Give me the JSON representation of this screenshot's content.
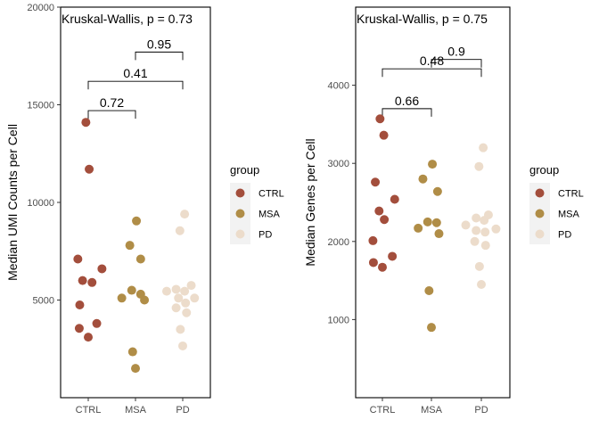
{
  "colors": {
    "CTRL": "#a34e3c",
    "MSA": "#b08d47",
    "PD": "#ecdccb",
    "axis": "#333333",
    "tick_text": "#4d4d4d",
    "legend_key_bg": "#f2f2f2"
  },
  "legend": {
    "title": "group",
    "entries": [
      "CTRL",
      "MSA",
      "PD"
    ]
  },
  "chart_data": [
    {
      "type": "scatter",
      "annotation": "Kruskal-Wallis, p = 0.73",
      "xlabel": "",
      "ylabel": "Median UMI Counts per Cell",
      "categories": [
        "CTRL",
        "MSA",
        "PD"
      ],
      "ylim": [
        0,
        20000
      ],
      "yticks": [
        5000,
        10000,
        15000,
        20000
      ],
      "ytick_labels": [
        "5000",
        "10000",
        "15000",
        "20000"
      ],
      "points": [
        {
          "group": "CTRL",
          "xj": -0.05,
          "y": 14100
        },
        {
          "group": "CTRL",
          "xj": 0.02,
          "y": 11700
        },
        {
          "group": "CTRL",
          "xj": -0.22,
          "y": 7100
        },
        {
          "group": "CTRL",
          "xj": 0.29,
          "y": 6600
        },
        {
          "group": "CTRL",
          "xj": -0.12,
          "y": 6000
        },
        {
          "group": "CTRL",
          "xj": 0.08,
          "y": 5900
        },
        {
          "group": "CTRL",
          "xj": -0.18,
          "y": 4750
        },
        {
          "group": "CTRL",
          "xj": 0.18,
          "y": 3800
        },
        {
          "group": "CTRL",
          "xj": -0.19,
          "y": 3550
        },
        {
          "group": "CTRL",
          "xj": 0.0,
          "y": 3100
        },
        {
          "group": "MSA",
          "xj": 0.02,
          "y": 9050
        },
        {
          "group": "MSA",
          "xj": -0.12,
          "y": 7800
        },
        {
          "group": "MSA",
          "xj": 0.11,
          "y": 7100
        },
        {
          "group": "MSA",
          "xj": -0.08,
          "y": 5500
        },
        {
          "group": "MSA",
          "xj": 0.11,
          "y": 5300
        },
        {
          "group": "MSA",
          "xj": -0.29,
          "y": 5100
        },
        {
          "group": "MSA",
          "xj": 0.19,
          "y": 5000
        },
        {
          "group": "MSA",
          "xj": -0.06,
          "y": 2350
        },
        {
          "group": "MSA",
          "xj": 0.0,
          "y": 1500
        },
        {
          "group": "PD",
          "xj": 0.04,
          "y": 9400
        },
        {
          "group": "PD",
          "xj": -0.06,
          "y": 8550
        },
        {
          "group": "PD",
          "xj": 0.18,
          "y": 5750
        },
        {
          "group": "PD",
          "xj": -0.14,
          "y": 5550
        },
        {
          "group": "PD",
          "xj": 0.04,
          "y": 5450
        },
        {
          "group": "PD",
          "xj": -0.34,
          "y": 5450
        },
        {
          "group": "PD",
          "xj": 0.25,
          "y": 5100
        },
        {
          "group": "PD",
          "xj": -0.09,
          "y": 5100
        },
        {
          "group": "PD",
          "xj": 0.06,
          "y": 4850
        },
        {
          "group": "PD",
          "xj": -0.14,
          "y": 4600
        },
        {
          "group": "PD",
          "xj": 0.08,
          "y": 4350
        },
        {
          "group": "PD",
          "xj": -0.05,
          "y": 3500
        },
        {
          "group": "PD",
          "xj": 0.0,
          "y": 2650
        }
      ],
      "comparisons": [
        {
          "from": "CTRL",
          "to": "MSA",
          "y": 14700,
          "label": "0.72"
        },
        {
          "from": "CTRL",
          "to": "PD",
          "y": 16200,
          "label": "0.41"
        },
        {
          "from": "MSA",
          "to": "PD",
          "y": 17700,
          "label": "0.95"
        }
      ]
    },
    {
      "type": "scatter",
      "annotation": "Kruskal-Wallis, p = 0.75",
      "xlabel": "",
      "ylabel": "Median Genes per Cell",
      "categories": [
        "CTRL",
        "MSA",
        "PD"
      ],
      "ylim": [
        0,
        5000
      ],
      "yticks": [
        1000,
        2000,
        3000,
        4000
      ],
      "ytick_labels": [
        "1000",
        "2000",
        "3000",
        "4000"
      ],
      "points": [
        {
          "group": "CTRL",
          "xj": -0.05,
          "y": 3570
        },
        {
          "group": "CTRL",
          "xj": 0.03,
          "y": 3360
        },
        {
          "group": "CTRL",
          "xj": -0.15,
          "y": 2760
        },
        {
          "group": "CTRL",
          "xj": 0.26,
          "y": 2540
        },
        {
          "group": "CTRL",
          "xj": -0.07,
          "y": 2390
        },
        {
          "group": "CTRL",
          "xj": 0.04,
          "y": 2280
        },
        {
          "group": "CTRL",
          "xj": -0.2,
          "y": 2010
        },
        {
          "group": "CTRL",
          "xj": 0.21,
          "y": 1810
        },
        {
          "group": "CTRL",
          "xj": -0.19,
          "y": 1730
        },
        {
          "group": "CTRL",
          "xj": 0.0,
          "y": 1670
        },
        {
          "group": "MSA",
          "xj": 0.02,
          "y": 2990
        },
        {
          "group": "MSA",
          "xj": -0.18,
          "y": 2800
        },
        {
          "group": "MSA",
          "xj": 0.13,
          "y": 2640
        },
        {
          "group": "MSA",
          "xj": -0.08,
          "y": 2250
        },
        {
          "group": "MSA",
          "xj": 0.11,
          "y": 2240
        },
        {
          "group": "MSA",
          "xj": -0.28,
          "y": 2170
        },
        {
          "group": "MSA",
          "xj": 0.16,
          "y": 2100
        },
        {
          "group": "MSA",
          "xj": -0.05,
          "y": 1370
        },
        {
          "group": "MSA",
          "xj": 0.0,
          "y": 900
        },
        {
          "group": "PD",
          "xj": 0.04,
          "y": 3200
        },
        {
          "group": "PD",
          "xj": -0.05,
          "y": 2960
        },
        {
          "group": "PD",
          "xj": 0.15,
          "y": 2340
        },
        {
          "group": "PD",
          "xj": -0.11,
          "y": 2300
        },
        {
          "group": "PD",
          "xj": 0.06,
          "y": 2270
        },
        {
          "group": "PD",
          "xj": -0.33,
          "y": 2210
        },
        {
          "group": "PD",
          "xj": 0.31,
          "y": 2160
        },
        {
          "group": "PD",
          "xj": -0.11,
          "y": 2140
        },
        {
          "group": "PD",
          "xj": 0.08,
          "y": 2120
        },
        {
          "group": "PD",
          "xj": -0.14,
          "y": 2000
        },
        {
          "group": "PD",
          "xj": 0.09,
          "y": 1950
        },
        {
          "group": "PD",
          "xj": -0.04,
          "y": 1680
        },
        {
          "group": "PD",
          "xj": 0.0,
          "y": 1450
        }
      ],
      "comparisons": [
        {
          "from": "CTRL",
          "to": "MSA",
          "y": 3700,
          "label": "0.66"
        },
        {
          "from": "CTRL",
          "to": "PD",
          "y": 4210,
          "label": "0.48"
        },
        {
          "from": "MSA",
          "to": "PD",
          "y": 4330,
          "label": "0.9"
        }
      ]
    }
  ]
}
